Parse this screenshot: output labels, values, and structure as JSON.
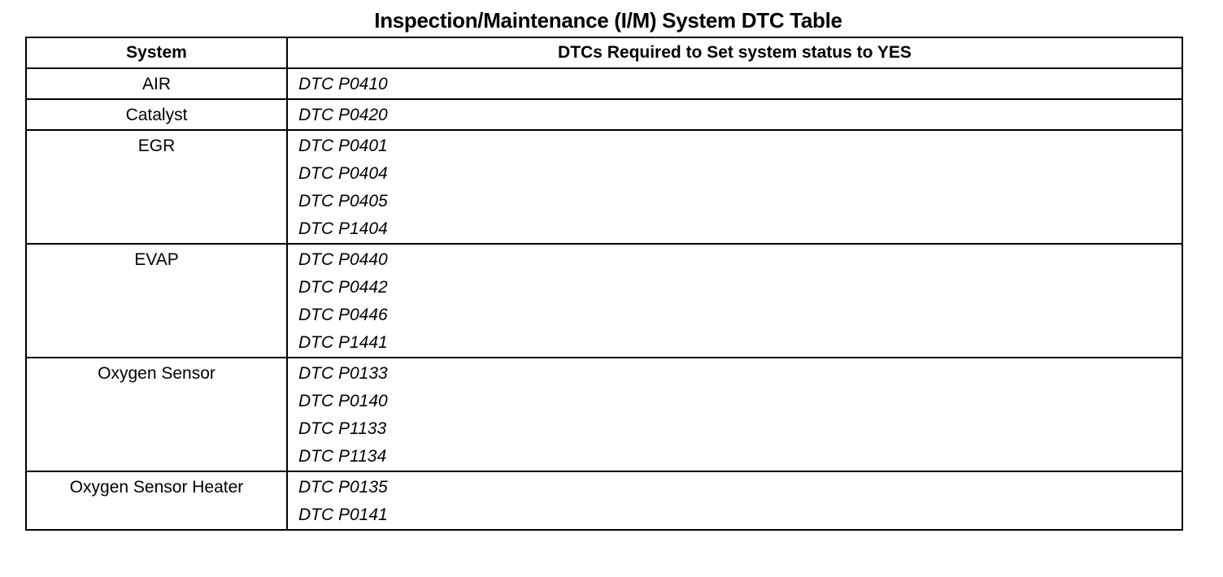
{
  "title": "Inspection/Maintenance (I/M) System DTC Table",
  "headers": {
    "system": "System",
    "dtcs": "DTCs Required to Set system status to YES"
  },
  "rows": [
    {
      "system": "AIR",
      "dtcs": [
        "DTC P0410"
      ]
    },
    {
      "system": "Catalyst",
      "dtcs": [
        "DTC P0420"
      ]
    },
    {
      "system": "EGR",
      "dtcs": [
        "DTC P0401",
        "DTC P0404",
        "DTC P0405",
        "DTC P1404"
      ]
    },
    {
      "system": "EVAP",
      "dtcs": [
        "DTC P0440",
        "DTC P0442",
        "DTC P0446",
        "DTC P1441"
      ]
    },
    {
      "system": "Oxygen Sensor",
      "dtcs": [
        "DTC P0133",
        "DTC P0140",
        "DTC P1133",
        "DTC P1134"
      ]
    },
    {
      "system": "Oxygen Sensor Heater",
      "dtcs": [
        "DTC P0135",
        "DTC P0141"
      ]
    }
  ]
}
